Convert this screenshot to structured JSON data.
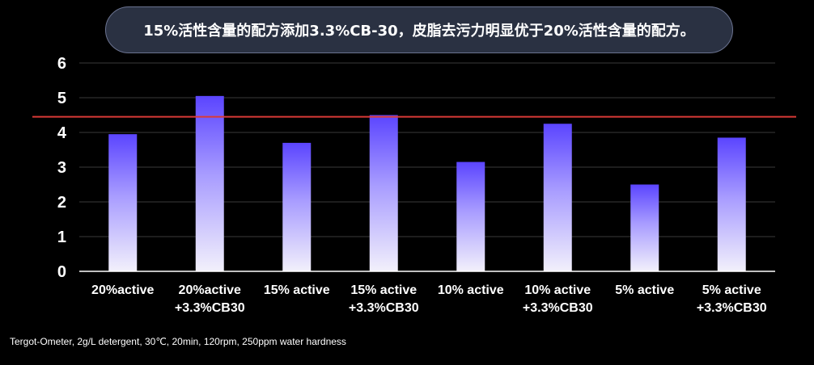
{
  "banner": {
    "text": "15%活性含量的配方添加3.3%CB-30，皮脂去污力明显优于20%活性含量的配方。"
  },
  "footnote": "Tergot-Ometer, 2g/L detergent, 30℃, 20min, 120rpm, 250ppm water hardness",
  "colors": {
    "background": "#000000",
    "bar_top": "#5b45ff",
    "bar_bottom": "#f2f0fb",
    "reference_line": "#d93a36",
    "grid": "#3a3a3a",
    "axis": "#ffffff",
    "text": "#ffffff"
  },
  "chart_data": {
    "type": "bar",
    "categories": [
      [
        "20%active"
      ],
      [
        "20%active",
        "+3.3%CB30"
      ],
      [
        "15% active"
      ],
      [
        "15% active",
        "+3.3%CB30"
      ],
      [
        "10% active"
      ],
      [
        "10% active",
        "+3.3%CB30"
      ],
      [
        "5% active"
      ],
      [
        "5% active",
        "+3.3%CB30"
      ]
    ],
    "values": [
      3.95,
      5.05,
      3.7,
      4.5,
      3.15,
      4.25,
      2.5,
      3.85
    ],
    "ylim": [
      0,
      6
    ],
    "yticks": [
      "0",
      "1",
      "2",
      "3",
      "4",
      "5",
      "6"
    ],
    "reference_line": 4.45,
    "grid": true,
    "title": "",
    "xlabel": "",
    "ylabel": ""
  }
}
